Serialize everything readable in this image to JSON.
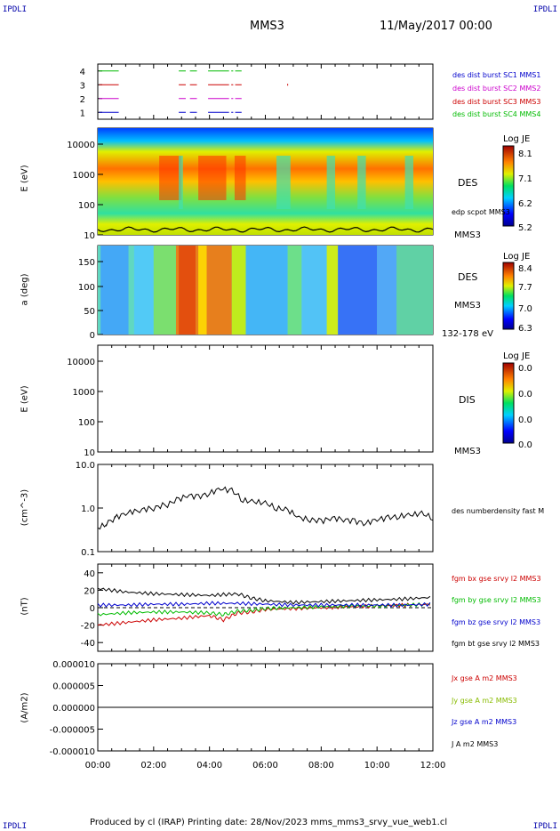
{
  "header": {
    "corner_tl": "IPDLI",
    "corner_tr": "IPDLI",
    "corner_bl": "IPDLI",
    "corner_br": "IPDLI",
    "spacecraft": "MMS3",
    "date": "11/May/2017 00:00"
  },
  "footer": {
    "text": "Produced by cl (IRAP)   Printing date: 28/Nov/2023   mms_mms3_srvy_vue_web1.cl"
  },
  "time_axis": {
    "ticks": [
      "00:00",
      "02:00",
      "04:00",
      "06:00",
      "08:00",
      "10:00",
      "12:00"
    ]
  },
  "colors": {
    "c1": "#0000cc",
    "c2": "#cc00cc",
    "c3": "#cc0000",
    "c4": "#00bb00"
  },
  "chart_data": [
    {
      "type": "line",
      "name": "burst availability",
      "ylim": [
        0.5,
        4.5
      ],
      "yticks": [
        "1",
        "2",
        "3",
        "4"
      ],
      "legend": [
        {
          "label": "des dist burst SC1 MMS1",
          "color": "#0000cc"
        },
        {
          "label": "des dist burst SC2 MMS2",
          "color": "#cc00cc"
        },
        {
          "label": "des dist burst SC3 MMS3",
          "color": "#cc0000"
        },
        {
          "label": "des dist burst SC4 MMS4",
          "color": "#00bb00"
        }
      ],
      "intervals_hours": [
        [
          0.05,
          0.75
        ],
        [
          2.9,
          3.15
        ],
        [
          3.3,
          3.55
        ],
        [
          3.95,
          4.7
        ],
        [
          4.78,
          4.85
        ],
        [
          4.92,
          5.15
        ]
      ]
    },
    {
      "type": "heatmap",
      "ylabel": "E (eV)",
      "yticks": [
        "10",
        "100",
        "1000",
        "10000"
      ],
      "side_labels": [
        "DES",
        "edp scpot MMS3",
        "MMS3"
      ],
      "colorbar": {
        "title": "Log JE",
        "ticks": [
          "8.1",
          "7.1",
          "6.2",
          "5.2"
        ]
      }
    },
    {
      "type": "heatmap",
      "ylabel": "a (deg)",
      "yticks": [
        "0",
        "50",
        "100",
        "150"
      ],
      "side_labels": [
        "DES",
        "MMS3",
        "132-178 eV"
      ],
      "colorbar": {
        "title": "Log JE",
        "ticks": [
          "8.4",
          "7.7",
          "7.0",
          "6.3"
        ]
      }
    },
    {
      "type": "heatmap",
      "ylabel": "E (eV)",
      "yticks": [
        "10",
        "100",
        "1000",
        "10000"
      ],
      "side_labels": [
        "DIS",
        "MMS3"
      ],
      "colorbar": {
        "title": "Log JE",
        "ticks": [
          "0.0",
          "0.0",
          "0.0",
          "0.0"
        ]
      }
    },
    {
      "type": "line",
      "ylabel": "(cm^-3)",
      "yticks": [
        "0.1",
        "1.0",
        "10.0"
      ],
      "series": [
        {
          "name": "des numberdensity fast M",
          "color": "#000000",
          "x_hours": [
            0,
            0.3,
            0.6,
            1,
            1.5,
            2,
            2.5,
            2.9,
            3.2,
            3.6,
            4,
            4.4,
            4.8,
            5.2,
            5.6,
            6,
            6.4,
            6.8,
            7.2,
            7.6,
            8,
            8.4,
            8.8,
            9.2,
            9.6,
            10,
            10.4,
            10.8,
            11.2,
            11.6,
            12
          ],
          "values": [
            0.35,
            0.45,
            0.6,
            0.75,
            0.9,
            1.0,
            1.2,
            1.6,
            2.0,
            1.8,
            2.2,
            2.8,
            2.5,
            1.5,
            1.4,
            1.3,
            1.0,
            0.9,
            0.6,
            0.55,
            0.5,
            0.6,
            0.55,
            0.5,
            0.45,
            0.55,
            0.6,
            0.65,
            0.7,
            0.75,
            0.6
          ]
        }
      ]
    },
    {
      "type": "line",
      "ylabel": "(nT)",
      "ylim": [
        -50,
        50
      ],
      "yticks": [
        "-40",
        "-20",
        "0",
        "20",
        "40"
      ],
      "series": [
        {
          "name": "fgm bx gse srvy l2 MMS3",
          "color": "#cc0000",
          "x_hours": [
            0,
            1,
            2,
            3,
            4,
            4.5,
            5,
            5.5,
            6,
            7,
            8,
            9,
            10,
            11,
            12
          ],
          "values": [
            -20,
            -17,
            -14,
            -12,
            -9,
            -14,
            -6,
            -5,
            -2,
            -1,
            0,
            1,
            2,
            3,
            4
          ]
        },
        {
          "name": "fgm by gse srvy l2 MMS3",
          "color": "#00bb00",
          "x_hours": [
            0,
            1,
            2,
            3,
            4,
            4.5,
            5,
            5.5,
            6,
            7,
            8,
            9,
            10,
            11,
            12
          ],
          "values": [
            -8,
            -6,
            -5,
            -5,
            -6,
            -8,
            -4,
            -3,
            -1,
            0,
            1,
            2,
            2,
            3,
            4
          ]
        },
        {
          "name": "fgm bz gse srvy l2 MMS3",
          "color": "#0000cc",
          "x_hours": [
            0,
            1,
            2,
            3,
            4,
            5,
            6,
            7,
            8,
            9,
            10,
            11,
            12
          ],
          "values": [
            3,
            3,
            4,
            4,
            5,
            5,
            4,
            3,
            3,
            3,
            3,
            3,
            4
          ]
        },
        {
          "name": "fgm bt gse srvy l2 MMS3",
          "color": "#000000",
          "x_hours": [
            0,
            1,
            2,
            3,
            4,
            5,
            5.5,
            6,
            7,
            8,
            9,
            10,
            11,
            12
          ],
          "values": [
            22,
            18,
            16,
            15,
            14,
            16,
            11,
            8,
            6,
            7,
            8,
            9,
            10,
            12
          ]
        }
      ]
    },
    {
      "type": "line",
      "ylabel": "(A/m2)",
      "ylim": [
        -1e-05,
        1e-05
      ],
      "yticks": [
        "0.000010",
        "0.000005",
        "0.000000",
        "-0.000005",
        "-0.000010"
      ],
      "series": [
        {
          "name": "Jx gse A m2 MMS3",
          "color": "#cc0000"
        },
        {
          "name": "Jy gse A m2 MMS3",
          "color": "#88bb00"
        },
        {
          "name": "Jz gse A m2 MMS3",
          "color": "#0000cc"
        },
        {
          "name": "J A m2 MMS3",
          "color": "#000000"
        }
      ]
    }
  ]
}
